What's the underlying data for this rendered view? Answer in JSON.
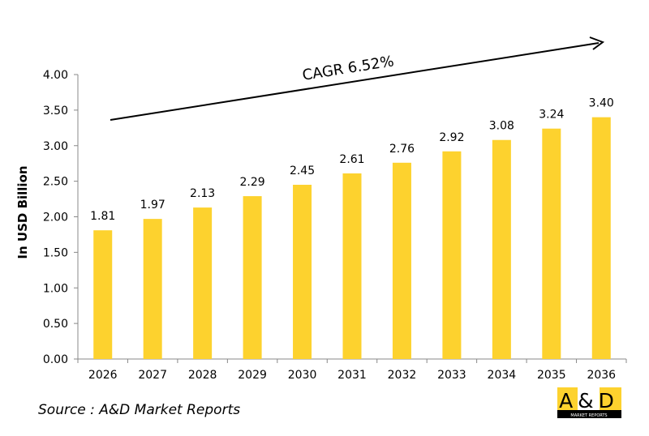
{
  "chart_data": {
    "type": "bar",
    "title": "",
    "xlabel": "",
    "ylabel": "In USD Billion",
    "categories": [
      "2026",
      "2027",
      "2028",
      "2029",
      "2030",
      "2031",
      "2032",
      "2033",
      "2034",
      "2035",
      "2036"
    ],
    "values": [
      1.81,
      1.97,
      2.13,
      2.29,
      2.45,
      2.61,
      2.76,
      2.92,
      3.08,
      3.24,
      3.4
    ],
    "data_labels": [
      "1.81",
      "1.97",
      "2.13",
      "2.29",
      "2.45",
      "2.61",
      "2.76",
      "2.92",
      "3.08",
      "3.24",
      "3.40"
    ],
    "ylim": [
      0,
      4
    ],
    "yticks": [
      "0.00",
      "0.50",
      "1.00",
      "1.50",
      "2.00",
      "2.50",
      "3.00",
      "3.50",
      "4.00"
    ],
    "grid": false,
    "bar_color": "#FDD22E",
    "annotation": "CAGR 6.52%"
  },
  "source": "Source : A&D Market Reports",
  "logo": {
    "main": "A&D",
    "sub": "MARKET REPORTS"
  }
}
